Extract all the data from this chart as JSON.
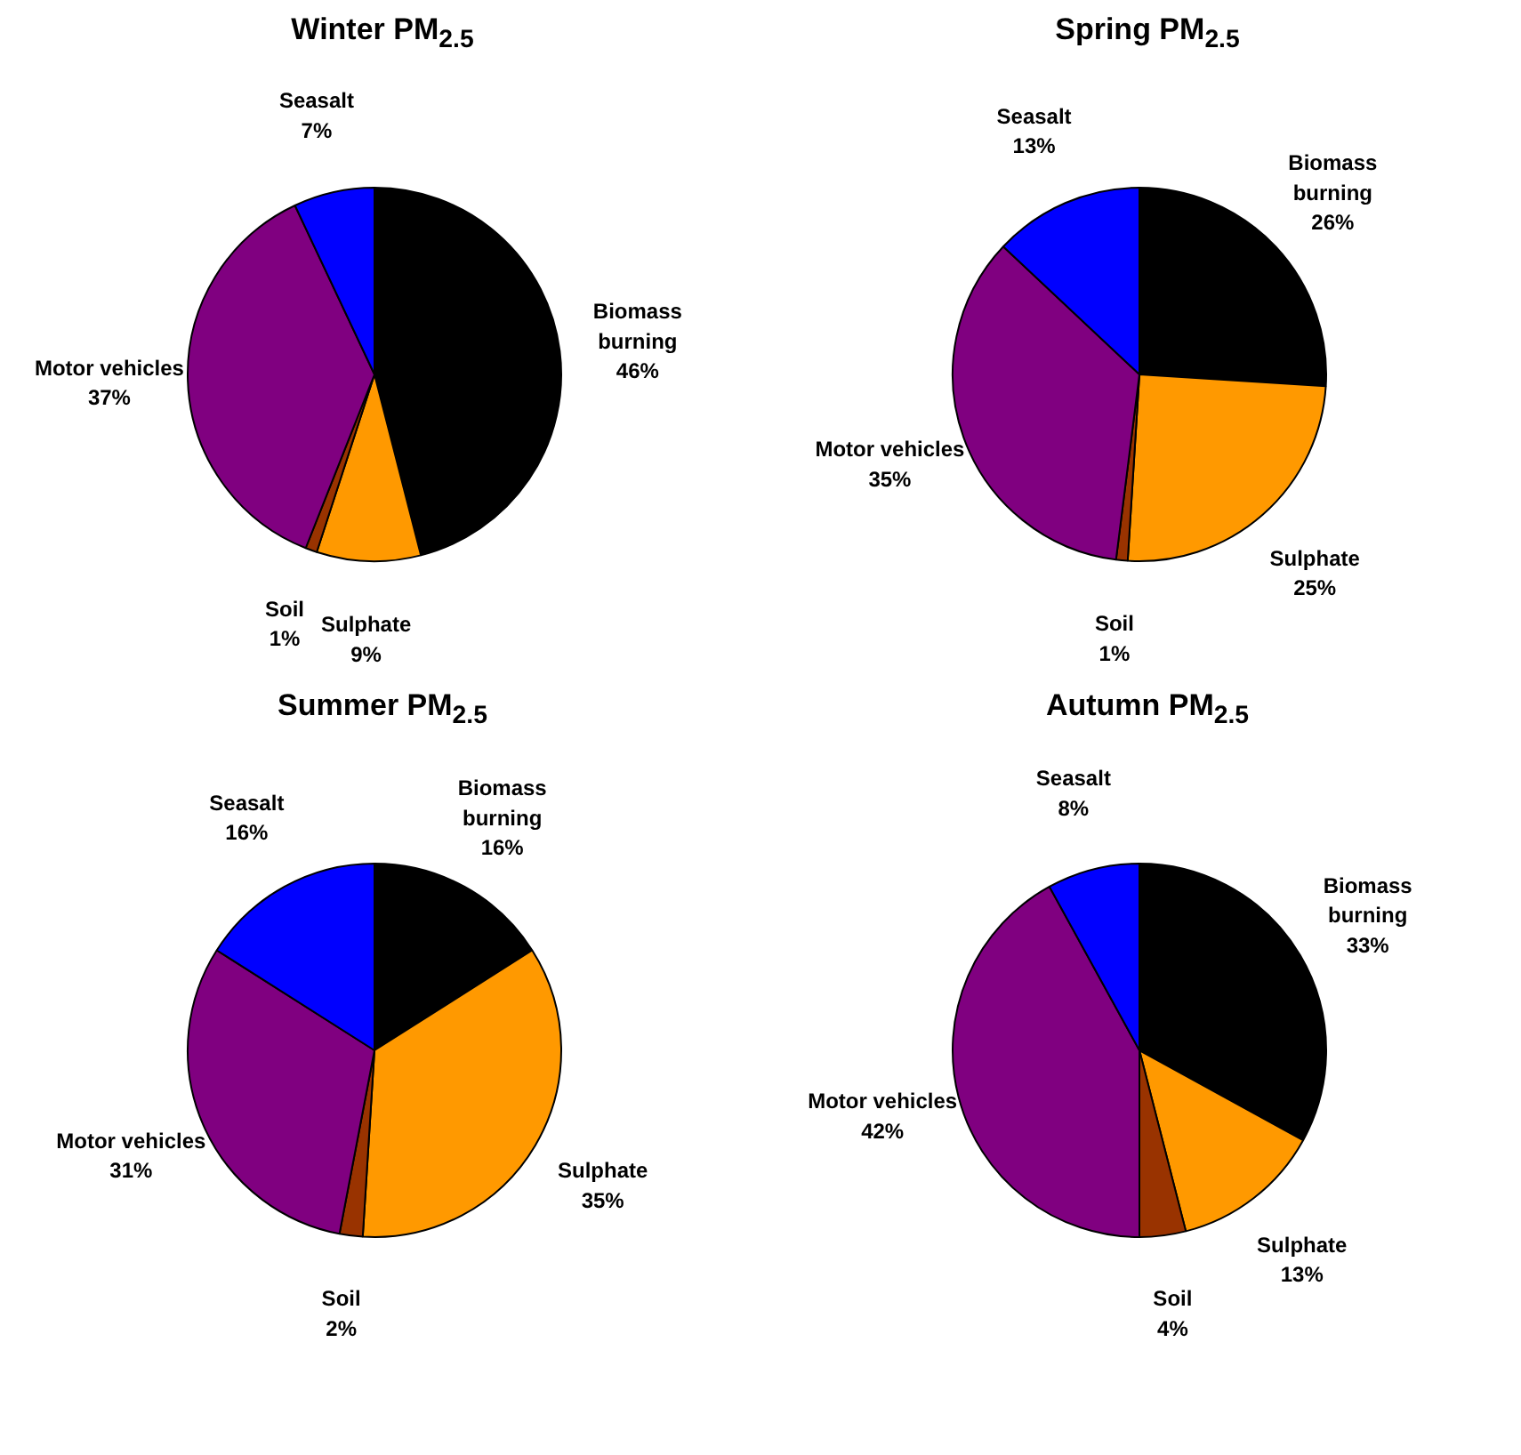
{
  "chart_data": [
    {
      "type": "pie",
      "title": "Winter PM$_{2.5}$",
      "categories": [
        "Biomass burning",
        "Sulphate",
        "Soil",
        "Motor vehicles",
        "Seasalt"
      ],
      "values": [
        46,
        9,
        1,
        37,
        7
      ],
      "value_labels": [
        "46%",
        "9%",
        "1%",
        "37%",
        "7%"
      ],
      "colors": [
        "#000000",
        "#ff9900",
        "#993300",
        "#800080",
        "#0000ff"
      ]
    },
    {
      "type": "pie",
      "title": "Spring PM$_{2.5}$",
      "categories": [
        "Biomass burning",
        "Sulphate",
        "Soil",
        "Motor vehicles",
        "Seasalt"
      ],
      "values": [
        26,
        25,
        1,
        35,
        13
      ],
      "value_labels": [
        "26%",
        "25%",
        "1%",
        "35%",
        "13%"
      ],
      "colors": [
        "#000000",
        "#ff9900",
        "#993300",
        "#800080",
        "#0000ff"
      ]
    },
    {
      "type": "pie",
      "title": "Summer PM$_{2.5}$",
      "categories": [
        "Biomass burning",
        "Sulphate",
        "Soil",
        "Motor vehicles",
        "Seasalt"
      ],
      "values": [
        16,
        35,
        2,
        31,
        16
      ],
      "value_labels": [
        "16%",
        "35%",
        "2%",
        "31%",
        "16%"
      ],
      "colors": [
        "#000000",
        "#ff9900",
        "#993300",
        "#800080",
        "#0000ff"
      ]
    },
    {
      "type": "pie",
      "title": "Autumn PM$_{2.5}$",
      "categories": [
        "Biomass burning",
        "Sulphate",
        "Soil",
        "Motor vehicles",
        "Seasalt"
      ],
      "values": [
        33,
        13,
        4,
        42,
        8
      ],
      "value_labels": [
        "33%",
        "13%",
        "4%",
        "42%",
        "8%"
      ],
      "colors": [
        "#000000",
        "#ff9900",
        "#993300",
        "#800080",
        "#0000ff"
      ]
    }
  ]
}
